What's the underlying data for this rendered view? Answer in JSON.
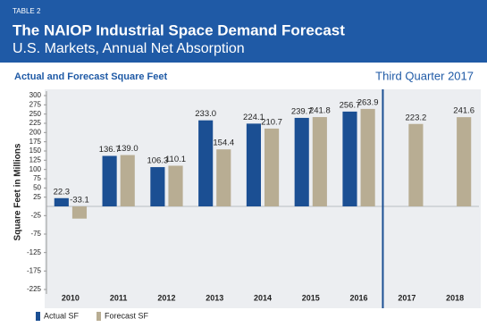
{
  "label": "TABLE 2",
  "title": "The NAIOP Industrial Space Demand Forecast",
  "subtitle": "U.S. Markets, Annual Net Absorption",
  "chart_data": {
    "type": "bar",
    "title": "Actual and Forecast Square Feet",
    "subtitle": "Third Quarter 2017",
    "y_label": "Square Feet in Millions",
    "categories": [
      "2010",
      "2011",
      "2012",
      "2013",
      "2014",
      "2015",
      "2016",
      "2017",
      "2018"
    ],
    "series": [
      {
        "name": "Actual SF",
        "color": "#1b4f93",
        "values": [
          22.3,
          136.7,
          106.3,
          233.0,
          224.1,
          239.7,
          256.7,
          null,
          null
        ],
        "value_labels": [
          "22.3",
          "136.7",
          "106.3",
          "233.0",
          "224.1",
          "239.7",
          "256.7",
          null,
          null
        ]
      },
      {
        "name": "Forecast SF",
        "color": "#b8ad93",
        "values": [
          -33.1,
          139.0,
          110.1,
          154.4,
          210.7,
          241.8,
          263.9,
          223.2,
          241.6
        ],
        "value_labels": [
          "-33.1",
          "139.0",
          "110.1",
          "154.4",
          "210.7",
          "241.8",
          "263.9",
          "223.2",
          "241.6"
        ]
      }
    ],
    "ylim": [
      -225,
      300
    ],
    "yticks": [
      300,
      275,
      250,
      225,
      200,
      175,
      150,
      125,
      100,
      75,
      50,
      25,
      -25,
      -75,
      -125,
      -175,
      -225
    ],
    "legend": "bottom-left"
  }
}
